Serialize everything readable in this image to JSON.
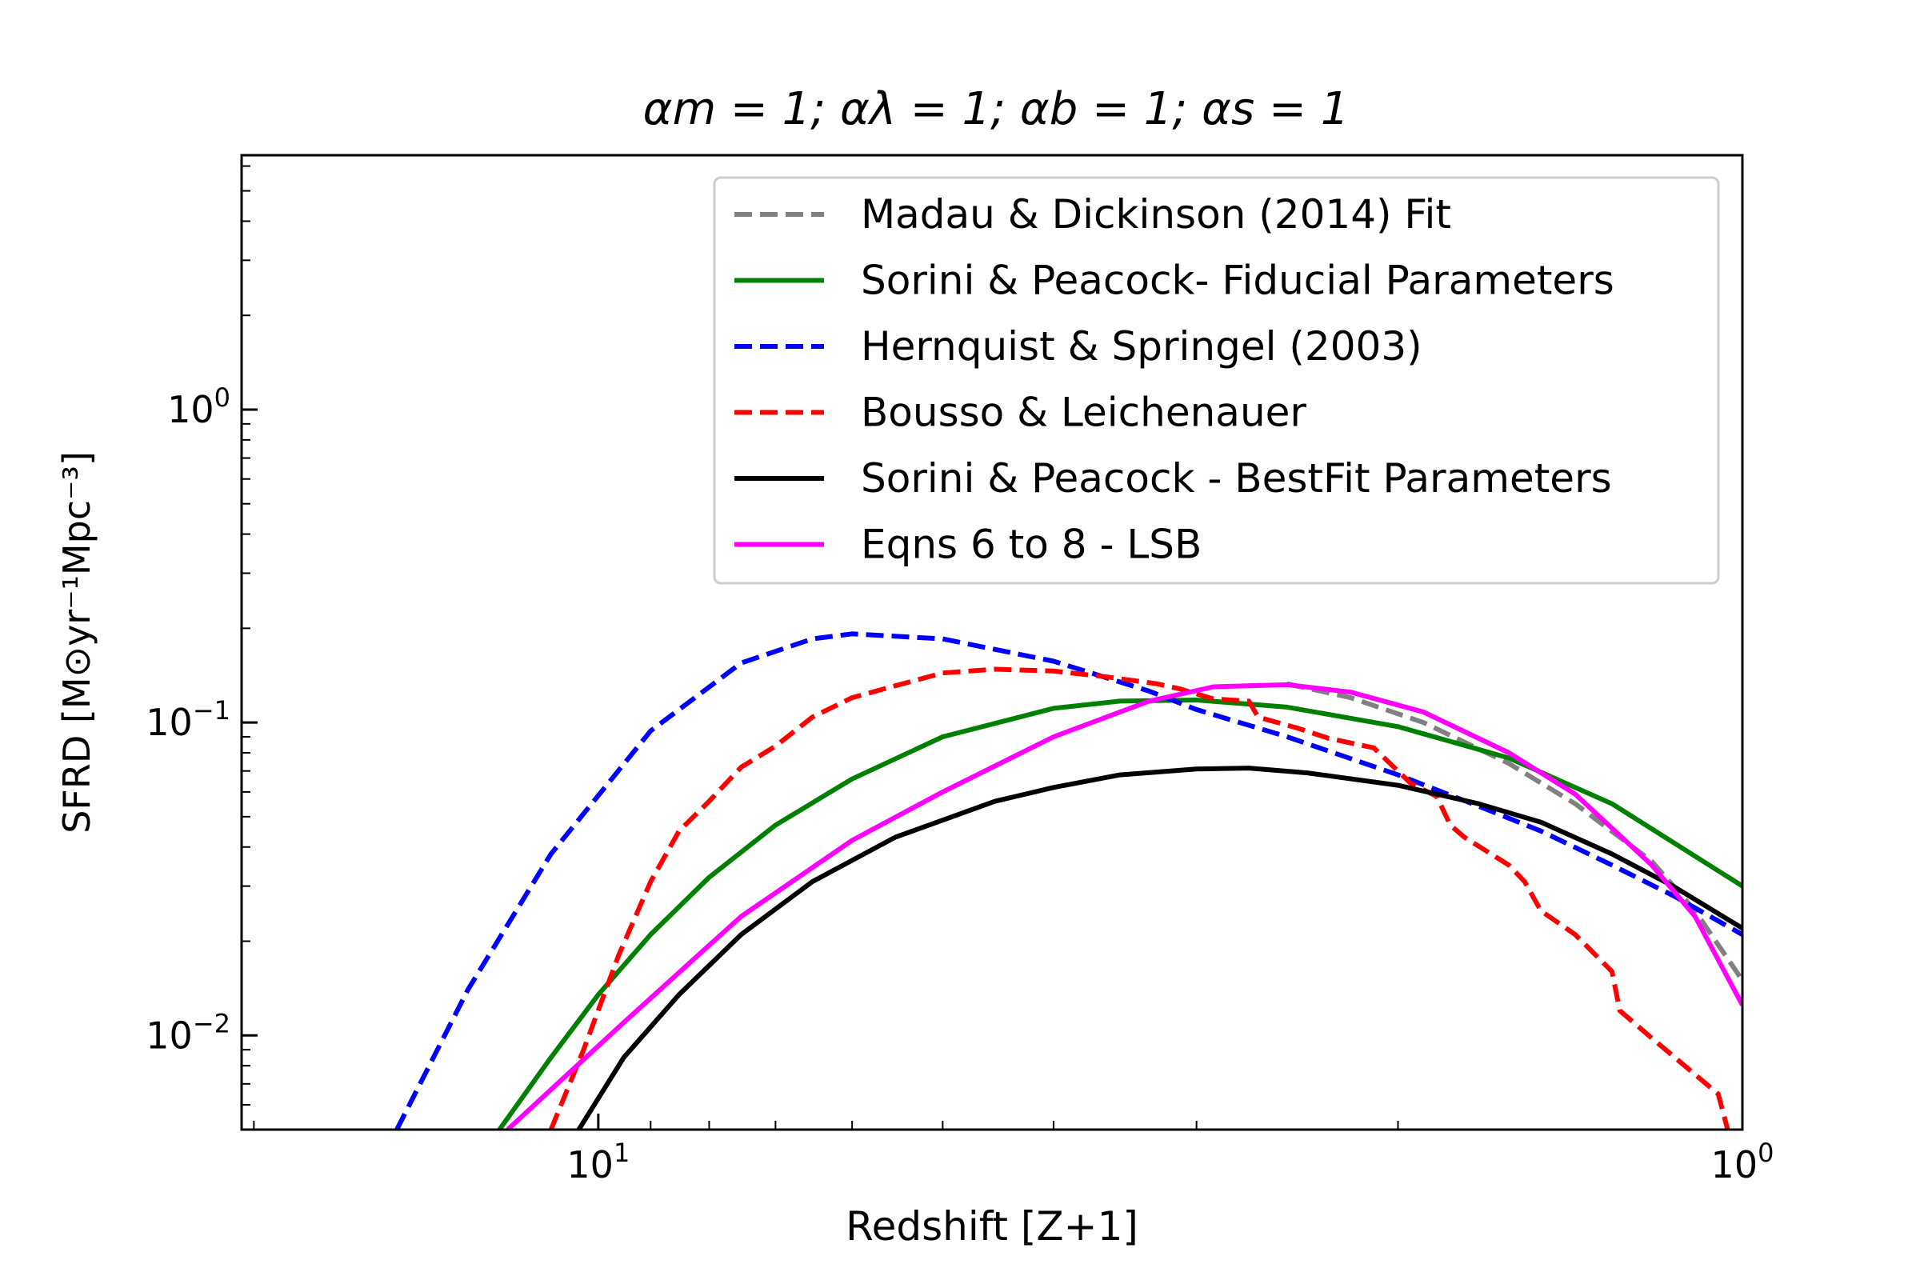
{
  "chart_data": {
    "type": "line",
    "title": "αm = 1; αλ = 1; αb = 1; αs = 1",
    "xlabel": "Redshift [Z+1]",
    "ylabel": "SFRD [M⊙yr⁻¹Mpc⁻³]",
    "x_scale": "log",
    "y_scale": "log",
    "x_reversed": true,
    "xlim": [
      20.5,
      1
    ],
    "ylim": [
      0.005,
      6.5
    ],
    "x_ticks": [
      {
        "value": 10,
        "base": "10",
        "exp": "1"
      },
      {
        "value": 1,
        "base": "10",
        "exp": "0"
      }
    ],
    "y_ticks": [
      {
        "value": 1,
        "base": "10",
        "exp": "0"
      },
      {
        "value": 0.1,
        "base": "10",
        "exp": "−1"
      },
      {
        "value": 0.01,
        "base": "10",
        "exp": "−2"
      }
    ],
    "legend_position": "top-right",
    "series": [
      {
        "name": "Madau & Dickinson (2014) Fit",
        "color": "#808080",
        "dash": "dashed",
        "points": [
          [
            2.5,
            0.133
          ],
          [
            2.2,
            0.12
          ],
          [
            1.9,
            0.1
          ],
          [
            1.6,
            0.074
          ],
          [
            1.4,
            0.055
          ],
          [
            1.2,
            0.036
          ],
          [
            1.1,
            0.025
          ],
          [
            1.0,
            0.015
          ]
        ]
      },
      {
        "name": "Sorini & Peacock- Fiducial Parameters",
        "color": "#008000",
        "dash": "solid",
        "points": [
          [
            12.2,
            0.005
          ],
          [
            11.0,
            0.0085
          ],
          [
            10.0,
            0.0135
          ],
          [
            9.0,
            0.021
          ],
          [
            8.0,
            0.032
          ],
          [
            7.0,
            0.047
          ],
          [
            6.0,
            0.066
          ],
          [
            5.0,
            0.09
          ],
          [
            4.0,
            0.111
          ],
          [
            3.5,
            0.117
          ],
          [
            3.0,
            0.118
          ],
          [
            2.5,
            0.112
          ],
          [
            2.0,
            0.097
          ],
          [
            1.6,
            0.077
          ],
          [
            1.3,
            0.055
          ],
          [
            1.0,
            0.03
          ]
        ]
      },
      {
        "name": "Hernquist & Springel (2003)",
        "color": "#0000ff",
        "dash": "dashed",
        "points": [
          [
            15.0,
            0.005
          ],
          [
            13.0,
            0.014
          ],
          [
            11.0,
            0.038
          ],
          [
            9.0,
            0.094
          ],
          [
            7.5,
            0.155
          ],
          [
            6.5,
            0.185
          ],
          [
            6.0,
            0.192
          ],
          [
            5.0,
            0.185
          ],
          [
            4.0,
            0.157
          ],
          [
            3.3,
            0.126
          ],
          [
            3.0,
            0.11
          ],
          [
            2.5,
            0.09
          ],
          [
            2.0,
            0.068
          ],
          [
            1.7,
            0.054
          ],
          [
            1.5,
            0.045
          ],
          [
            1.3,
            0.035
          ],
          [
            1.15,
            0.028
          ],
          [
            1.0,
            0.021
          ]
        ]
      },
      {
        "name": "Bousso & Leichenauer",
        "color": "#ff0000",
        "dash": "dashed",
        "points": [
          [
            11.0,
            0.005
          ],
          [
            10.3,
            0.009
          ],
          [
            9.6,
            0.018
          ],
          [
            9.0,
            0.031
          ],
          [
            8.5,
            0.045
          ],
          [
            8.0,
            0.056
          ],
          [
            7.5,
            0.072
          ],
          [
            7.0,
            0.084
          ],
          [
            6.5,
            0.104
          ],
          [
            6.0,
            0.12
          ],
          [
            5.5,
            0.131
          ],
          [
            5.0,
            0.144
          ],
          [
            4.5,
            0.148
          ],
          [
            4.0,
            0.146
          ],
          [
            3.6,
            0.14
          ],
          [
            3.25,
            0.133
          ],
          [
            3.1,
            0.128
          ],
          [
            2.9,
            0.119
          ],
          [
            2.7,
            0.117
          ],
          [
            2.65,
            0.104
          ],
          [
            2.45,
            0.096
          ],
          [
            2.3,
            0.089
          ],
          [
            2.1,
            0.083
          ],
          [
            1.95,
            0.064
          ],
          [
            1.85,
            0.058
          ],
          [
            1.8,
            0.047
          ],
          [
            1.75,
            0.043
          ],
          [
            1.6,
            0.035
          ],
          [
            1.55,
            0.031
          ],
          [
            1.5,
            0.025
          ],
          [
            1.4,
            0.021
          ],
          [
            1.3,
            0.016
          ],
          [
            1.28,
            0.012
          ],
          [
            1.2,
            0.0098
          ],
          [
            1.1,
            0.0075
          ],
          [
            1.05,
            0.0065
          ],
          [
            1.03,
            0.005
          ]
        ]
      },
      {
        "name": "Sorini & Peacock - BestFit Parameters",
        "color": "#000000",
        "dash": "solid",
        "points": [
          [
            10.4,
            0.005
          ],
          [
            9.5,
            0.0085
          ],
          [
            8.5,
            0.0135
          ],
          [
            7.5,
            0.021
          ],
          [
            6.5,
            0.031
          ],
          [
            5.5,
            0.043
          ],
          [
            4.5,
            0.056
          ],
          [
            4.0,
            0.062
          ],
          [
            3.5,
            0.068
          ],
          [
            3.0,
            0.071
          ],
          [
            2.7,
            0.0715
          ],
          [
            2.4,
            0.069
          ],
          [
            2.0,
            0.063
          ],
          [
            1.7,
            0.055
          ],
          [
            1.5,
            0.048
          ],
          [
            1.3,
            0.038
          ],
          [
            1.15,
            0.03
          ],
          [
            1.0,
            0.022
          ]
        ]
      },
      {
        "name": "Eqns 6 to 8 - LSB",
        "color": "#ff00ff",
        "dash": "solid",
        "points": [
          [
            12.0,
            0.005
          ],
          [
            9.5,
            0.011
          ],
          [
            7.5,
            0.024
          ],
          [
            6.0,
            0.042
          ],
          [
            5.0,
            0.06
          ],
          [
            4.0,
            0.09
          ],
          [
            3.3,
            0.117
          ],
          [
            2.9,
            0.13
          ],
          [
            2.5,
            0.132
          ],
          [
            2.2,
            0.125
          ],
          [
            1.9,
            0.108
          ],
          [
            1.6,
            0.08
          ],
          [
            1.4,
            0.059
          ],
          [
            1.2,
            0.035
          ],
          [
            1.1,
            0.024
          ],
          [
            1.0,
            0.0125
          ]
        ]
      }
    ]
  }
}
